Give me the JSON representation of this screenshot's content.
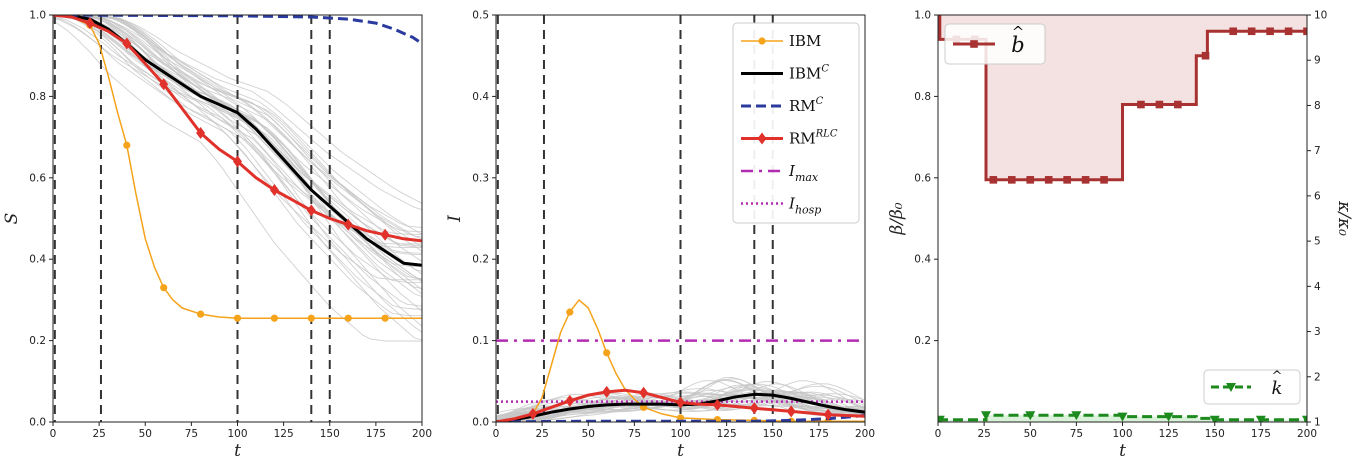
{
  "chart_data": [
    {
      "type": "line",
      "xlabel": "t",
      "ylabel": "S",
      "xlim": [
        0,
        200
      ],
      "ylim": [
        0,
        1.0
      ],
      "xticks": [
        "0",
        "25",
        "50",
        "75",
        "100",
        "125",
        "150",
        "175",
        "200"
      ],
      "yticks": [
        "0.0",
        "0.2",
        "0.4",
        "0.6",
        "0.8",
        "1.0"
      ],
      "vlines": [
        1,
        26,
        100,
        140,
        150
      ],
      "series": [
        {
          "key": "ibm",
          "color": "#f5a31a",
          "style": "solid",
          "marker": "circle",
          "x": [
            0,
            10,
            20,
            25,
            30,
            35,
            40,
            45,
            50,
            55,
            60,
            65,
            70,
            80,
            90,
            100,
            120,
            140,
            160,
            180,
            200
          ],
          "y": [
            1.0,
            0.995,
            0.975,
            0.93,
            0.85,
            0.76,
            0.68,
            0.56,
            0.45,
            0.38,
            0.33,
            0.3,
            0.28,
            0.265,
            0.258,
            0.255,
            0.255,
            0.255,
            0.255,
            0.255,
            0.255
          ],
          "markers_x": [
            20,
            40,
            60,
            80,
            100,
            120,
            140,
            160,
            180
          ]
        },
        {
          "key": "ibmc",
          "color": "#000000",
          "style": "solid",
          "x": [
            0,
            10,
            20,
            30,
            40,
            50,
            60,
            70,
            80,
            90,
            100,
            110,
            120,
            130,
            140,
            150,
            160,
            170,
            180,
            190,
            200
          ],
          "y": [
            1.0,
            0.998,
            0.99,
            0.965,
            0.93,
            0.89,
            0.86,
            0.83,
            0.8,
            0.78,
            0.76,
            0.72,
            0.67,
            0.62,
            0.57,
            0.53,
            0.49,
            0.45,
            0.42,
            0.39,
            0.385
          ]
        },
        {
          "key": "rmc",
          "color": "#2a3a9e",
          "style": "dashed",
          "x": [
            0,
            50,
            100,
            140,
            160,
            175,
            185,
            195,
            200
          ],
          "y": [
            1.0,
            0.999,
            0.998,
            0.995,
            0.99,
            0.98,
            0.965,
            0.945,
            0.93
          ]
        },
        {
          "key": "rmrlc",
          "color": "#e0312b",
          "style": "solid",
          "marker": "diamond",
          "x": [
            0,
            10,
            20,
            30,
            40,
            50,
            60,
            70,
            80,
            90,
            100,
            110,
            120,
            130,
            140,
            150,
            160,
            170,
            180,
            190,
            200
          ],
          "y": [
            1.0,
            0.995,
            0.98,
            0.96,
            0.93,
            0.88,
            0.83,
            0.77,
            0.71,
            0.67,
            0.64,
            0.6,
            0.57,
            0.545,
            0.52,
            0.5,
            0.485,
            0.47,
            0.46,
            0.45,
            0.445
          ],
          "markers_x": [
            20,
            40,
            60,
            80,
            100,
            120,
            140,
            160,
            180
          ]
        }
      ]
    },
    {
      "type": "line",
      "xlabel": "t",
      "ylabel": "I",
      "xlim": [
        0,
        200
      ],
      "ylim": [
        0,
        0.5
      ],
      "xticks": [
        "0",
        "25",
        "50",
        "75",
        "100",
        "125",
        "150",
        "175",
        "200"
      ],
      "yticks": [
        "0.0",
        "0.1",
        "0.2",
        "0.3",
        "0.4",
        "0.5"
      ],
      "vlines": [
        1,
        26,
        100,
        140,
        150
      ],
      "hlines": [
        {
          "key": "imax",
          "y": 0.1,
          "color": "#b22cb2",
          "style": "dashdot"
        },
        {
          "key": "ihosp",
          "y": 0.025,
          "color": "#b22cb2",
          "style": "dotted"
        }
      ],
      "series": [
        {
          "key": "ibm",
          "color": "#f5a31a",
          "style": "solid",
          "marker": "circle",
          "x": [
            0,
            10,
            20,
            25,
            30,
            35,
            40,
            45,
            50,
            55,
            60,
            65,
            70,
            75,
            80,
            90,
            100,
            120,
            140,
            160,
            180,
            200
          ],
          "y": [
            0,
            0.002,
            0.01,
            0.03,
            0.07,
            0.11,
            0.135,
            0.15,
            0.14,
            0.115,
            0.085,
            0.06,
            0.04,
            0.028,
            0.018,
            0.01,
            0.005,
            0.003,
            0.002,
            0.001,
            0.001,
            0.001
          ],
          "markers_x": [
            20,
            40,
            60,
            80,
            100,
            120,
            140,
            160,
            180
          ]
        },
        {
          "key": "ibmc",
          "color": "#000000",
          "style": "solid",
          "x": [
            0,
            10,
            20,
            30,
            40,
            50,
            60,
            70,
            80,
            90,
            100,
            110,
            120,
            130,
            140,
            150,
            160,
            170,
            180,
            190,
            200
          ],
          "y": [
            0,
            0.003,
            0.007,
            0.012,
            0.016,
            0.019,
            0.021,
            0.022,
            0.022,
            0.022,
            0.021,
            0.022,
            0.026,
            0.031,
            0.034,
            0.033,
            0.029,
            0.024,
            0.019,
            0.015,
            0.012
          ]
        },
        {
          "key": "rmc",
          "color": "#2a3a9e",
          "style": "dashed",
          "x": [
            0,
            50,
            100,
            140,
            160,
            180,
            190,
            200
          ],
          "y": [
            0.0,
            0.001,
            0.001,
            0.001,
            0.002,
            0.004,
            0.006,
            0.008
          ]
        },
        {
          "key": "rmrlc",
          "color": "#e0312b",
          "style": "solid",
          "marker": "diamond",
          "x": [
            0,
            10,
            20,
            30,
            40,
            50,
            60,
            70,
            80,
            90,
            100,
            110,
            120,
            130,
            140,
            150,
            160,
            170,
            180,
            190,
            200
          ],
          "y": [
            0,
            0.004,
            0.01,
            0.018,
            0.026,
            0.033,
            0.037,
            0.039,
            0.036,
            0.03,
            0.024,
            0.022,
            0.021,
            0.019,
            0.017,
            0.015,
            0.013,
            0.011,
            0.009,
            0.008,
            0.007
          ],
          "markers_x": [
            20,
            40,
            60,
            80,
            100,
            120,
            140,
            160,
            180
          ]
        }
      ],
      "legend": {
        "placement": "top-right",
        "entries": [
          {
            "key": "ibm",
            "label": "IBM",
            "sup": "",
            "sub": ""
          },
          {
            "key": "ibmc",
            "label": "IBM",
            "sup": "C",
            "sub": ""
          },
          {
            "key": "rmc",
            "label": "RM",
            "sup": "C",
            "sub": ""
          },
          {
            "key": "rmrlc",
            "label": "RM",
            "sup": "RLC",
            "sub": ""
          },
          {
            "key": "imax",
            "label": "I",
            "sup": "",
            "sub": "max"
          },
          {
            "key": "ihosp",
            "label": "I",
            "sup": "",
            "sub": "hosp"
          }
        ]
      }
    },
    {
      "type": "step",
      "xlabel": "t",
      "ylabel_left": "β/β₀",
      "ylabel_right": "κ/κ₀",
      "xlim": [
        0,
        200
      ],
      "ylim_left": [
        0,
        1.0
      ],
      "ylim_right": [
        1,
        10
      ],
      "xticks": [
        "0",
        "25",
        "50",
        "75",
        "100",
        "125",
        "150",
        "175",
        "200"
      ],
      "yticks_left": [
        "0.2",
        "0.4",
        "0.6",
        "0.8",
        "1.0"
      ],
      "yticks_right": [
        "1",
        "2",
        "3",
        "4",
        "5",
        "6",
        "7",
        "8",
        "9",
        "10"
      ],
      "series": [
        {
          "key": "bhat",
          "label": "b",
          "label_accent": "^",
          "color": "#a83232",
          "fill": "#f3dede",
          "style": "solid",
          "marker": "square",
          "steps": [
            [
              0,
              1.0
            ],
            [
              1,
              0.94
            ],
            [
              26,
              0.595
            ],
            [
              100,
              0.78
            ],
            [
              140,
              0.9
            ],
            [
              146,
              0.96
            ],
            [
              200,
              0.96
            ]
          ],
          "markers_x": [
            10,
            20,
            30,
            40,
            50,
            60,
            70,
            80,
            90,
            110,
            120,
            130,
            145,
            160,
            170,
            180,
            190,
            200
          ]
        },
        {
          "key": "khat",
          "label": "k",
          "label_accent": "^",
          "color": "#1c8a1c",
          "fill": "#d6efd6",
          "style": "dashed",
          "marker": "triangle-down",
          "axis": "right",
          "steps": [
            [
              0,
              1.05
            ],
            [
              26,
              1.15
            ],
            [
              100,
              1.12
            ],
            [
              140,
              1.08
            ],
            [
              150,
              1.05
            ],
            [
              200,
              1.05
            ]
          ],
          "markers_x": [
            1,
            26,
            50,
            75,
            100,
            125,
            150,
            175,
            200
          ]
        }
      ],
      "legend": {
        "placement": [
          "top-left",
          "bottom-right"
        ]
      }
    }
  ]
}
